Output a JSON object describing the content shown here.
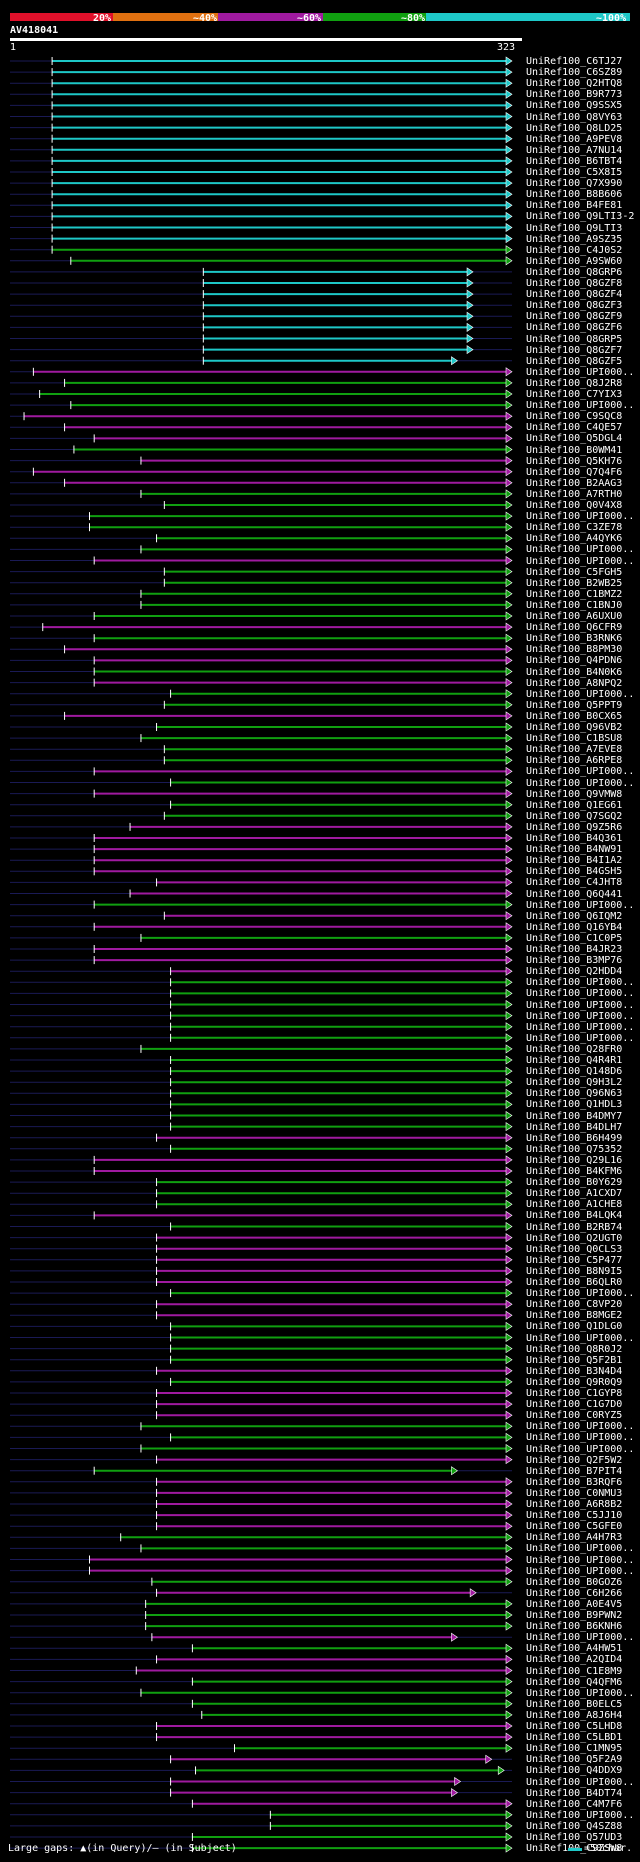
{
  "header": {
    "percent_labels": [
      "20%",
      "~40%",
      "~60%",
      "~80%",
      "~100%"
    ],
    "colors": [
      "#e0102a",
      "#e07010",
      "#a01aa0",
      "#10a010",
      "#1ec8c8"
    ]
  },
  "query": {
    "id": "AV418041",
    "start": "1",
    "end": "323"
  },
  "legend": {
    "text": "Large gaps: ▲(in Query)/– (in Subject)",
    "scale": "=50char."
  },
  "hits": [
    {
      "label": "UniRef100_C6TJ27",
      "s": 28,
      "e": 323,
      "c": 4
    },
    {
      "label": "UniRef100_C6SZ89",
      "s": 28,
      "e": 323,
      "c": 4
    },
    {
      "label": "UniRef100_Q2HTQ8",
      "s": 28,
      "e": 323,
      "c": 4
    },
    {
      "label": "UniRef100_B9R773",
      "s": 28,
      "e": 323,
      "c": 4
    },
    {
      "label": "UniRef100_Q9SSX5",
      "s": 28,
      "e": 323,
      "c": 4
    },
    {
      "label": "UniRef100_Q8VY63",
      "s": 28,
      "e": 323,
      "c": 4
    },
    {
      "label": "UniRef100_Q8LD25",
      "s": 28,
      "e": 323,
      "c": 4
    },
    {
      "label": "UniRef100_A9PEV8",
      "s": 28,
      "e": 323,
      "c": 4
    },
    {
      "label": "UniRef100_A7NU14",
      "s": 28,
      "e": 323,
      "c": 4
    },
    {
      "label": "UniRef100_B6TBT4",
      "s": 28,
      "e": 323,
      "c": 4
    },
    {
      "label": "UniRef100_C5X8I5",
      "s": 28,
      "e": 323,
      "c": 4
    },
    {
      "label": "UniRef100_Q7X990",
      "s": 28,
      "e": 323,
      "c": 4
    },
    {
      "label": "UniRef100_B8B606",
      "s": 28,
      "e": 323,
      "c": 4
    },
    {
      "label": "UniRef100_B4FE81",
      "s": 28,
      "e": 323,
      "c": 4
    },
    {
      "label": "UniRef100_Q9LTI3-2",
      "s": 28,
      "e": 323,
      "c": 4
    },
    {
      "label": "UniRef100_Q9LTI3",
      "s": 28,
      "e": 323,
      "c": 4
    },
    {
      "label": "UniRef100_A9SZ35",
      "s": 28,
      "e": 323,
      "c": 4
    },
    {
      "label": "UniRef100_C4J0S2",
      "s": 28,
      "e": 323,
      "c": 3
    },
    {
      "label": "UniRef100_A9SW60",
      "s": 40,
      "e": 323,
      "c": 3
    },
    {
      "label": "UniRef100_Q8GRP6",
      "s": 125,
      "e": 298,
      "c": 4
    },
    {
      "label": "UniRef100_Q8GZF8",
      "s": 125,
      "e": 298,
      "c": 4
    },
    {
      "label": "UniRef100_Q8GZF4",
      "s": 125,
      "e": 298,
      "c": 4
    },
    {
      "label": "UniRef100_Q8GZF3",
      "s": 125,
      "e": 298,
      "c": 4
    },
    {
      "label": "UniRef100_Q8GZF9",
      "s": 125,
      "e": 298,
      "c": 4
    },
    {
      "label": "UniRef100_Q8GZF6",
      "s": 125,
      "e": 298,
      "c": 4
    },
    {
      "label": "UniRef100_Q8GRP5",
      "s": 125,
      "e": 298,
      "c": 4
    },
    {
      "label": "UniRef100_Q8GZF7",
      "s": 125,
      "e": 298,
      "c": 4
    },
    {
      "label": "UniRef100_Q8GZF5",
      "s": 125,
      "e": 288,
      "c": 4
    },
    {
      "label": "UniRef100_UPI000..",
      "s": 16,
      "e": 323,
      "c": 2
    },
    {
      "label": "UniRef100_Q8J2R8",
      "s": 36,
      "e": 323,
      "c": 3
    },
    {
      "label": "UniRef100_C7YIX3",
      "s": 20,
      "e": 323,
      "c": 3
    },
    {
      "label": "UniRef100_UPI000..",
      "s": 40,
      "e": 323,
      "c": 3
    },
    {
      "label": "UniRef100_C9SQC8",
      "s": 10,
      "e": 323,
      "c": 2
    },
    {
      "label": "UniRef100_C4QE57",
      "s": 36,
      "e": 323,
      "c": 2
    },
    {
      "label": "UniRef100_Q5DGL4",
      "s": 55,
      "e": 323,
      "c": 2
    },
    {
      "label": "UniRef100_B0WM41",
      "s": 42,
      "e": 323,
      "c": 3
    },
    {
      "label": "UniRef100_Q5KH76",
      "s": 85,
      "e": 323,
      "c": 2
    },
    {
      "label": "UniRef100_Q7Q4F6",
      "s": 16,
      "e": 323,
      "c": 2
    },
    {
      "label": "UniRef100_B2AAG3",
      "s": 36,
      "e": 323,
      "c": 2
    },
    {
      "label": "UniRef100_A7RTH0",
      "s": 85,
      "e": 323,
      "c": 3
    },
    {
      "label": "UniRef100_Q0V4X8",
      "s": 100,
      "e": 323,
      "c": 3
    },
    {
      "label": "UniRef100_UPI000..",
      "s": 52,
      "e": 323,
      "c": 3
    },
    {
      "label": "UniRef100_C3ZE78",
      "s": 52,
      "e": 323,
      "c": 3
    },
    {
      "label": "UniRef100_A4QYK6",
      "s": 95,
      "e": 323,
      "c": 3
    },
    {
      "label": "UniRef100_UPI000..",
      "s": 85,
      "e": 323,
      "c": 3
    },
    {
      "label": "UniRef100_UPI000..",
      "s": 55,
      "e": 323,
      "c": 2
    },
    {
      "label": "UniRef100_C5FGH5",
      "s": 100,
      "e": 323,
      "c": 3
    },
    {
      "label": "UniRef100_B2WB25",
      "s": 100,
      "e": 323,
      "c": 3
    },
    {
      "label": "UniRef100_C1BMZ2",
      "s": 85,
      "e": 323,
      "c": 3
    },
    {
      "label": "UniRef100_C1BNJ0",
      "s": 85,
      "e": 323,
      "c": 3
    },
    {
      "label": "UniRef100_A6UXU0",
      "s": 55,
      "e": 323,
      "c": 3
    },
    {
      "label": "UniRef100_Q6CFR9",
      "s": 22,
      "e": 323,
      "c": 2
    },
    {
      "label": "UniRef100_B3RNK6",
      "s": 55,
      "e": 323,
      "c": 3
    },
    {
      "label": "UniRef100_B8PM30",
      "s": 36,
      "e": 323,
      "c": 2
    },
    {
      "label": "UniRef100_Q4PDN6",
      "s": 55,
      "e": 323,
      "c": 2
    },
    {
      "label": "UniRef100_B4N0K6",
      "s": 55,
      "e": 323,
      "c": 3
    },
    {
      "label": "UniRef100_A8NPQ2",
      "s": 55,
      "e": 323,
      "c": 2
    },
    {
      "label": "UniRef100_UPI000..",
      "s": 104,
      "e": 323,
      "c": 3
    },
    {
      "label": "UniRef100_Q5PPT9",
      "s": 100,
      "e": 323,
      "c": 3
    },
    {
      "label": "UniRef100_B0CX65",
      "s": 36,
      "e": 323,
      "c": 2
    },
    {
      "label": "UniRef100_Q96VB2",
      "s": 95,
      "e": 323,
      "c": 3
    },
    {
      "label": "UniRef100_C1BSU8",
      "s": 85,
      "e": 323,
      "c": 3
    },
    {
      "label": "UniRef100_A7EVE8",
      "s": 100,
      "e": 323,
      "c": 3
    },
    {
      "label": "UniRef100_A6RPE8",
      "s": 100,
      "e": 323,
      "c": 3
    },
    {
      "label": "UniRef100_UPI000..",
      "s": 55,
      "e": 323,
      "c": 2
    },
    {
      "label": "UniRef100_UPI000..",
      "s": 104,
      "e": 323,
      "c": 3
    },
    {
      "label": "UniRef100_Q9VMW8",
      "s": 55,
      "e": 323,
      "c": 2
    },
    {
      "label": "UniRef100_Q1EG61",
      "s": 104,
      "e": 323,
      "c": 3
    },
    {
      "label": "UniRef100_Q7SGQ2",
      "s": 100,
      "e": 323,
      "c": 3
    },
    {
      "label": "UniRef100_Q9Z5R6",
      "s": 78,
      "e": 323,
      "c": 2
    },
    {
      "label": "UniRef100_B4Q361",
      "s": 55,
      "e": 323,
      "c": 2
    },
    {
      "label": "UniRef100_B4NW91",
      "s": 55,
      "e": 323,
      "c": 2
    },
    {
      "label": "UniRef100_B4I1A2",
      "s": 55,
      "e": 323,
      "c": 2
    },
    {
      "label": "UniRef100_B4GSH5",
      "s": 55,
      "e": 323,
      "c": 2
    },
    {
      "label": "UniRef100_C4JHT8",
      "s": 95,
      "e": 323,
      "c": 2
    },
    {
      "label": "UniRef100_Q6Q441",
      "s": 78,
      "e": 323,
      "c": 2
    },
    {
      "label": "UniRef100_UPI000..",
      "s": 55,
      "e": 323,
      "c": 3
    },
    {
      "label": "UniRef100_Q6IQM2",
      "s": 100,
      "e": 323,
      "c": 2
    },
    {
      "label": "UniRef100_Q16YB4",
      "s": 55,
      "e": 323,
      "c": 2
    },
    {
      "label": "UniRef100_C1C0P5",
      "s": 85,
      "e": 323,
      "c": 3
    },
    {
      "label": "UniRef100_B4JR23",
      "s": 55,
      "e": 323,
      "c": 2
    },
    {
      "label": "UniRef100_B3MP76",
      "s": 55,
      "e": 323,
      "c": 2
    },
    {
      "label": "UniRef100_Q2HDD4",
      "s": 104,
      "e": 323,
      "c": 2
    },
    {
      "label": "UniRef100_UPI000..",
      "s": 104,
      "e": 323,
      "c": 3
    },
    {
      "label": "UniRef100_UPI000..",
      "s": 104,
      "e": 323,
      "c": 3
    },
    {
      "label": "UniRef100_UPI000..",
      "s": 104,
      "e": 323,
      "c": 3
    },
    {
      "label": "UniRef100_UPI000..",
      "s": 104,
      "e": 323,
      "c": 3
    },
    {
      "label": "UniRef100_UPI000..",
      "s": 104,
      "e": 323,
      "c": 3
    },
    {
      "label": "UniRef100_UPI000..",
      "s": 104,
      "e": 323,
      "c": 3
    },
    {
      "label": "UniRef100_Q28FR0",
      "s": 85,
      "e": 323,
      "c": 3
    },
    {
      "label": "UniRef100_Q4R4R1",
      "s": 104,
      "e": 323,
      "c": 3
    },
    {
      "label": "UniRef100_Q148D6",
      "s": 104,
      "e": 323,
      "c": 3
    },
    {
      "label": "UniRef100_Q9H3L2",
      "s": 104,
      "e": 323,
      "c": 3
    },
    {
      "label": "UniRef100_Q96N63",
      "s": 104,
      "e": 323,
      "c": 3
    },
    {
      "label": "UniRef100_Q1HDL3",
      "s": 104,
      "e": 323,
      "c": 3
    },
    {
      "label": "UniRef100_B4DMY7",
      "s": 104,
      "e": 323,
      "c": 3
    },
    {
      "label": "UniRef100_B4DLH7",
      "s": 104,
      "e": 323,
      "c": 3
    },
    {
      "label": "UniRef100_B6H499",
      "s": 95,
      "e": 323,
      "c": 2
    },
    {
      "label": "UniRef100_Q75352",
      "s": 104,
      "e": 323,
      "c": 3
    },
    {
      "label": "UniRef100_Q29L16",
      "s": 55,
      "e": 323,
      "c": 2
    },
    {
      "label": "UniRef100_B4KFM6",
      "s": 55,
      "e": 323,
      "c": 2
    },
    {
      "label": "UniRef100_B0Y629",
      "s": 95,
      "e": 323,
      "c": 3
    },
    {
      "label": "UniRef100_A1CXD7",
      "s": 95,
      "e": 323,
      "c": 3
    },
    {
      "label": "UniRef100_A1CHE8",
      "s": 95,
      "e": 323,
      "c": 3
    },
    {
      "label": "UniRef100_B4LQK4",
      "s": 55,
      "e": 323,
      "c": 2
    },
    {
      "label": "UniRef100_B2RB74",
      "s": 104,
      "e": 323,
      "c": 3
    },
    {
      "label": "UniRef100_Q2UGT0",
      "s": 95,
      "e": 323,
      "c": 2
    },
    {
      "label": "UniRef100_Q0CLS3",
      "s": 95,
      "e": 323,
      "c": 2
    },
    {
      "label": "UniRef100_C5P477",
      "s": 95,
      "e": 323,
      "c": 2
    },
    {
      "label": "UniRef100_B8N9I5",
      "s": 95,
      "e": 323,
      "c": 2
    },
    {
      "label": "UniRef100_B6QLR0",
      "s": 95,
      "e": 323,
      "c": 2
    },
    {
      "label": "UniRef100_UPI000..",
      "s": 104,
      "e": 323,
      "c": 3
    },
    {
      "label": "UniRef100_C8VP20",
      "s": 95,
      "e": 323,
      "c": 2
    },
    {
      "label": "UniRef100_B8MGE2",
      "s": 95,
      "e": 323,
      "c": 2
    },
    {
      "label": "UniRef100_Q1DLG0",
      "s": 104,
      "e": 323,
      "c": 3
    },
    {
      "label": "UniRef100_UPI000..",
      "s": 104,
      "e": 323,
      "c": 3
    },
    {
      "label": "UniRef100_Q8R0J2",
      "s": 104,
      "e": 323,
      "c": 3
    },
    {
      "label": "UniRef100_Q5F2B1",
      "s": 104,
      "e": 323,
      "c": 3
    },
    {
      "label": "UniRef100_B3N4D4",
      "s": 95,
      "e": 323,
      "c": 2
    },
    {
      "label": "UniRef100_Q9R0Q9",
      "s": 104,
      "e": 323,
      "c": 3
    },
    {
      "label": "UniRef100_C1GYP8",
      "s": 95,
      "e": 323,
      "c": 2
    },
    {
      "label": "UniRef100_C1G7D0",
      "s": 95,
      "e": 323,
      "c": 2
    },
    {
      "label": "UniRef100_C0RYZ5",
      "s": 95,
      "e": 323,
      "c": 2
    },
    {
      "label": "UniRef100_UPI000..",
      "s": 85,
      "e": 323,
      "c": 3
    },
    {
      "label": "UniRef100_UPI000..",
      "s": 104,
      "e": 323,
      "c": 3
    },
    {
      "label": "UniRef100_UPI000..",
      "s": 85,
      "e": 323,
      "c": 3
    },
    {
      "label": "UniRef100_Q2F5W2",
      "s": 95,
      "e": 323,
      "c": 2
    },
    {
      "label": "UniRef100_B7PIT4",
      "s": 55,
      "e": 288,
      "c": 3
    },
    {
      "label": "UniRef100_B3RQF6",
      "s": 95,
      "e": 323,
      "c": 2
    },
    {
      "label": "UniRef100_C0NMU3",
      "s": 95,
      "e": 323,
      "c": 2
    },
    {
      "label": "UniRef100_A6R8B2",
      "s": 95,
      "e": 323,
      "c": 2
    },
    {
      "label": "UniRef100_C5JJ10",
      "s": 95,
      "e": 323,
      "c": 2
    },
    {
      "label": "UniRef100_C5GFE0",
      "s": 95,
      "e": 323,
      "c": 2
    },
    {
      "label": "UniRef100_A4H7R3",
      "s": 72,
      "e": 323,
      "c": 3
    },
    {
      "label": "UniRef100_UPI000..",
      "s": 85,
      "e": 323,
      "c": 3
    },
    {
      "label": "UniRef100_UPI000..",
      "s": 52,
      "e": 323,
      "c": 2
    },
    {
      "label": "UniRef100_UPI000..",
      "s": 52,
      "e": 323,
      "c": 2
    },
    {
      "label": "UniRef100_B0GOZ6",
      "s": 92,
      "e": 323,
      "c": 3
    },
    {
      "label": "UniRef100_C6H266",
      "s": 95,
      "e": 300,
      "c": 2
    },
    {
      "label": "UniRef100_A0E4V5",
      "s": 88,
      "e": 323,
      "c": 3
    },
    {
      "label": "UniRef100_B9PWN2",
      "s": 88,
      "e": 323,
      "c": 3
    },
    {
      "label": "UniRef100_B6KNH6",
      "s": 88,
      "e": 323,
      "c": 3
    },
    {
      "label": "UniRef100_UPI000..",
      "s": 92,
      "e": 288,
      "c": 2
    },
    {
      "label": "UniRef100_A4HW51",
      "s": 118,
      "e": 323,
      "c": 3
    },
    {
      "label": "UniRef100_A2QID4",
      "s": 95,
      "e": 323,
      "c": 2
    },
    {
      "label": "UniRef100_C1E8M9",
      "s": 82,
      "e": 323,
      "c": 2
    },
    {
      "label": "UniRef100_Q4QFM6",
      "s": 118,
      "e": 323,
      "c": 3
    },
    {
      "label": "UniRef100_UPI000..",
      "s": 85,
      "e": 323,
      "c": 3
    },
    {
      "label": "UniRef100_B0ELC5",
      "s": 118,
      "e": 323,
      "c": 3
    },
    {
      "label": "UniRef100_A8J6H4",
      "s": 124,
      "e": 323,
      "c": 3
    },
    {
      "label": "UniRef100_C5LHD8",
      "s": 95,
      "e": 323,
      "c": 2
    },
    {
      "label": "UniRef100_C5LBD1",
      "s": 95,
      "e": 323,
      "c": 2
    },
    {
      "label": "UniRef100_C1MN95",
      "s": 145,
      "e": 323,
      "c": 3
    },
    {
      "label": "UniRef100_Q5F2A9",
      "s": 104,
      "e": 310,
      "c": 2
    },
    {
      "label": "UniRef100_Q4DDX9",
      "s": 120,
      "e": 318,
      "c": 3
    },
    {
      "label": "UniRef100_UPI000..",
      "s": 104,
      "e": 290,
      "c": 2
    },
    {
      "label": "UniRef100_B4DT74",
      "s": 104,
      "e": 288,
      "c": 2
    },
    {
      "label": "UniRef100_C4M7F6",
      "s": 118,
      "e": 323,
      "c": 2
    },
    {
      "label": "UniRef100_UPI000..",
      "s": 168,
      "e": 323,
      "c": 3
    },
    {
      "label": "UniRef100_Q4SZ88",
      "s": 168,
      "e": 323,
      "c": 3
    },
    {
      "label": "UniRef100_Q57UD3",
      "s": 118,
      "e": 323,
      "c": 3
    },
    {
      "label": "UniRef100_C9ZSW8",
      "s": 118,
      "e": 323,
      "c": 3
    }
  ]
}
